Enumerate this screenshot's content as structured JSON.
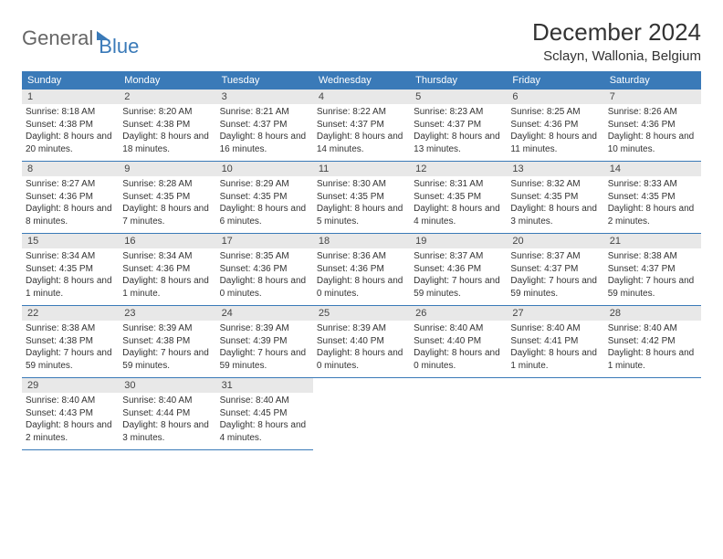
{
  "logo": {
    "text1": "General",
    "text2": "Blue"
  },
  "title": "December 2024",
  "location": "Sclayn, Wallonia, Belgium",
  "colors": {
    "header_bg": "#3a7ab8",
    "header_text": "#ffffff",
    "daynum_bg": "#e8e8e8",
    "border": "#3a7ab8",
    "text": "#333333",
    "page_bg": "#ffffff"
  },
  "day_headers": [
    "Sunday",
    "Monday",
    "Tuesday",
    "Wednesday",
    "Thursday",
    "Friday",
    "Saturday"
  ],
  "days": [
    {
      "n": 1,
      "sunrise": "8:18 AM",
      "sunset": "4:38 PM",
      "daylight": "8 hours and 20 minutes."
    },
    {
      "n": 2,
      "sunrise": "8:20 AM",
      "sunset": "4:38 PM",
      "daylight": "8 hours and 18 minutes."
    },
    {
      "n": 3,
      "sunrise": "8:21 AM",
      "sunset": "4:37 PM",
      "daylight": "8 hours and 16 minutes."
    },
    {
      "n": 4,
      "sunrise": "8:22 AM",
      "sunset": "4:37 PM",
      "daylight": "8 hours and 14 minutes."
    },
    {
      "n": 5,
      "sunrise": "8:23 AM",
      "sunset": "4:37 PM",
      "daylight": "8 hours and 13 minutes."
    },
    {
      "n": 6,
      "sunrise": "8:25 AM",
      "sunset": "4:36 PM",
      "daylight": "8 hours and 11 minutes."
    },
    {
      "n": 7,
      "sunrise": "8:26 AM",
      "sunset": "4:36 PM",
      "daylight": "8 hours and 10 minutes."
    },
    {
      "n": 8,
      "sunrise": "8:27 AM",
      "sunset": "4:36 PM",
      "daylight": "8 hours and 8 minutes."
    },
    {
      "n": 9,
      "sunrise": "8:28 AM",
      "sunset": "4:35 PM",
      "daylight": "8 hours and 7 minutes."
    },
    {
      "n": 10,
      "sunrise": "8:29 AM",
      "sunset": "4:35 PM",
      "daylight": "8 hours and 6 minutes."
    },
    {
      "n": 11,
      "sunrise": "8:30 AM",
      "sunset": "4:35 PM",
      "daylight": "8 hours and 5 minutes."
    },
    {
      "n": 12,
      "sunrise": "8:31 AM",
      "sunset": "4:35 PM",
      "daylight": "8 hours and 4 minutes."
    },
    {
      "n": 13,
      "sunrise": "8:32 AM",
      "sunset": "4:35 PM",
      "daylight": "8 hours and 3 minutes."
    },
    {
      "n": 14,
      "sunrise": "8:33 AM",
      "sunset": "4:35 PM",
      "daylight": "8 hours and 2 minutes."
    },
    {
      "n": 15,
      "sunrise": "8:34 AM",
      "sunset": "4:35 PM",
      "daylight": "8 hours and 1 minute."
    },
    {
      "n": 16,
      "sunrise": "8:34 AM",
      "sunset": "4:36 PM",
      "daylight": "8 hours and 1 minute."
    },
    {
      "n": 17,
      "sunrise": "8:35 AM",
      "sunset": "4:36 PM",
      "daylight": "8 hours and 0 minutes."
    },
    {
      "n": 18,
      "sunrise": "8:36 AM",
      "sunset": "4:36 PM",
      "daylight": "8 hours and 0 minutes."
    },
    {
      "n": 19,
      "sunrise": "8:37 AM",
      "sunset": "4:36 PM",
      "daylight": "7 hours and 59 minutes."
    },
    {
      "n": 20,
      "sunrise": "8:37 AM",
      "sunset": "4:37 PM",
      "daylight": "7 hours and 59 minutes."
    },
    {
      "n": 21,
      "sunrise": "8:38 AM",
      "sunset": "4:37 PM",
      "daylight": "7 hours and 59 minutes."
    },
    {
      "n": 22,
      "sunrise": "8:38 AM",
      "sunset": "4:38 PM",
      "daylight": "7 hours and 59 minutes."
    },
    {
      "n": 23,
      "sunrise": "8:39 AM",
      "sunset": "4:38 PM",
      "daylight": "7 hours and 59 minutes."
    },
    {
      "n": 24,
      "sunrise": "8:39 AM",
      "sunset": "4:39 PM",
      "daylight": "7 hours and 59 minutes."
    },
    {
      "n": 25,
      "sunrise": "8:39 AM",
      "sunset": "4:40 PM",
      "daylight": "8 hours and 0 minutes."
    },
    {
      "n": 26,
      "sunrise": "8:40 AM",
      "sunset": "4:40 PM",
      "daylight": "8 hours and 0 minutes."
    },
    {
      "n": 27,
      "sunrise": "8:40 AM",
      "sunset": "4:41 PM",
      "daylight": "8 hours and 1 minute."
    },
    {
      "n": 28,
      "sunrise": "8:40 AM",
      "sunset": "4:42 PM",
      "daylight": "8 hours and 1 minute."
    },
    {
      "n": 29,
      "sunrise": "8:40 AM",
      "sunset": "4:43 PM",
      "daylight": "8 hours and 2 minutes."
    },
    {
      "n": 30,
      "sunrise": "8:40 AM",
      "sunset": "4:44 PM",
      "daylight": "8 hours and 3 minutes."
    },
    {
      "n": 31,
      "sunrise": "8:40 AM",
      "sunset": "4:45 PM",
      "daylight": "8 hours and 4 minutes."
    }
  ],
  "labels": {
    "sunrise": "Sunrise: ",
    "sunset": "Sunset: ",
    "daylight": "Daylight: "
  },
  "trailing_empty": 4
}
